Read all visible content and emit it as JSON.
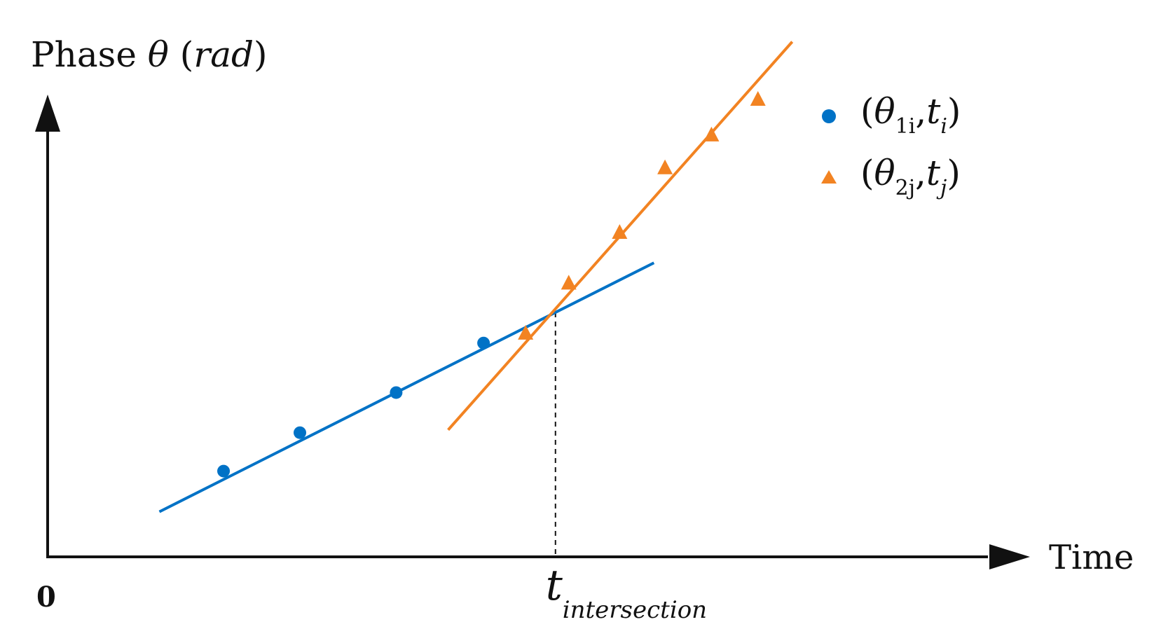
{
  "chart_data": {
    "type": "scatter",
    "title": "",
    "ylabel": {
      "prefix": "Phase ",
      "symbol": "θ",
      "unit_open": " (",
      "unit": "rad",
      "unit_close": ")"
    },
    "xlabel": "Time",
    "origin_label": "0",
    "xlim": [
      0,
      100
    ],
    "ylim": [
      0,
      100
    ],
    "grid": false,
    "legend_position": "top-right",
    "series": [
      {
        "name": "(θ1i, ti)",
        "marker": "circle",
        "color": "#0072C6",
        "points": [
          [
            15.9,
            15.4
          ],
          [
            22.8,
            22.3
          ],
          [
            31.5,
            29.5
          ],
          [
            39.4,
            38.4
          ]
        ],
        "fit_line": [
          [
            10.1,
            8.1
          ],
          [
            54.8,
            52.8
          ]
        ]
      },
      {
        "name": "(θ2j, tj)",
        "marker": "triangle",
        "color": "#F28322",
        "points": [
          [
            43.2,
            40.2
          ],
          [
            47.1,
            49.2
          ],
          [
            51.7,
            58.3
          ],
          [
            55.8,
            69.9
          ],
          [
            60.0,
            75.8
          ],
          [
            64.2,
            82.2
          ]
        ],
        "fit_line": [
          [
            36.2,
            22.8
          ],
          [
            67.3,
            92.5
          ]
        ]
      }
    ],
    "intersection": {
      "x": 45.9,
      "label_main": "t",
      "label_sub": "intersection"
    },
    "legend": [
      {
        "marker": "circle",
        "open": "(",
        "theta": "θ",
        "theta_sub": "1i",
        "comma": ",",
        "t": "t",
        "t_sub": "i",
        "close": ")"
      },
      {
        "marker": "triangle",
        "open": "(",
        "theta": "θ",
        "theta_sub": "2j",
        "comma": ",",
        "t": "t",
        "t_sub": "j",
        "close": ")"
      }
    ]
  }
}
